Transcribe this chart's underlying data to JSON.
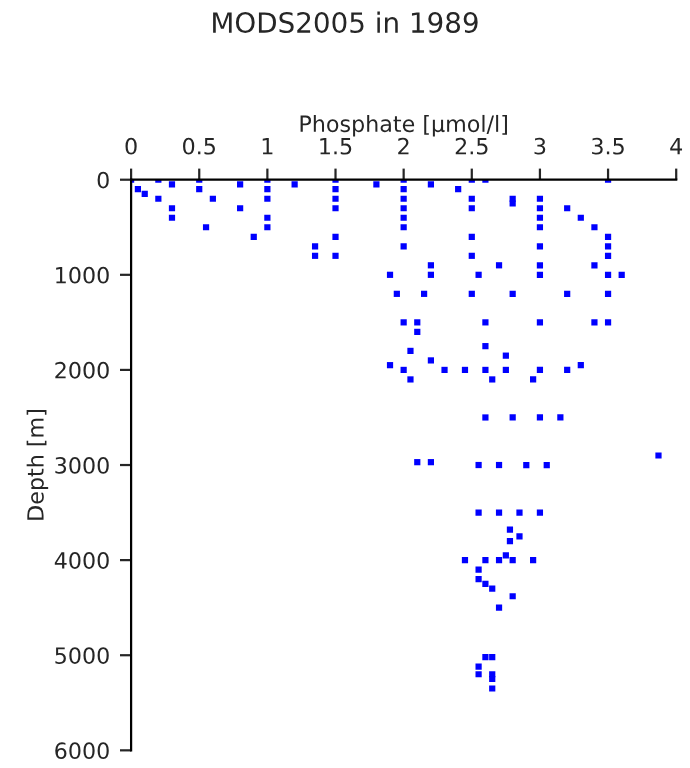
{
  "chart_data": {
    "type": "scatter",
    "title": "MODS2005 in 1989",
    "xlabel": "Phosphate [µmol/l]",
    "ylabel": "Depth [m]",
    "xlim": [
      0,
      4
    ],
    "xticks": [
      0,
      0.5,
      1,
      1.5,
      2,
      2.5,
      3,
      3.5,
      4
    ],
    "ylim": [
      6000,
      0
    ],
    "yticks": [
      0,
      1000,
      2000,
      3000,
      4000,
      5000,
      6000
    ],
    "grid": false,
    "marker": "square",
    "series": [
      {
        "color": "#0000ff",
        "x": [
          0.0,
          0.2,
          0.5,
          1.0,
          1.5,
          2.0,
          2.5,
          2.6,
          0.05,
          0.3,
          0.8,
          1.2,
          1.8,
          2.2,
          0.1,
          0.5,
          1.0,
          1.5,
          2.0,
          2.4,
          3.5,
          0.2,
          0.6,
          1.0,
          1.5,
          2.0,
          2.5,
          2.8,
          3.0,
          2.8,
          0.3,
          0.8,
          1.5,
          2.0,
          2.5,
          3.0,
          3.2,
          0.3,
          1.0,
          2.0,
          3.0,
          3.3,
          0.55,
          1.0,
          2.0,
          3.0,
          3.4,
          0.9,
          1.5,
          2.5,
          3.5,
          1.35,
          2.0,
          3.0,
          3.5,
          1.35,
          1.5,
          2.5,
          3.5,
          2.2,
          2.7,
          3.0,
          3.4,
          1.9,
          2.2,
          2.55,
          3.0,
          3.5,
          3.6,
          1.95,
          2.15,
          2.5,
          2.8,
          3.2,
          3.5,
          2.0,
          2.1,
          2.6,
          3.0,
          3.4,
          3.5,
          2.1,
          2.05,
          2.6,
          2.75,
          1.9,
          2.05,
          2.2,
          2.3,
          2.45,
          2.6,
          2.75,
          3.0,
          3.2,
          3.3,
          2.0,
          2.65,
          2.95,
          2.6,
          2.8,
          3.0,
          3.15,
          2.1,
          2.2,
          2.55,
          2.7,
          2.9,
          3.05,
          3.87,
          2.55,
          2.7,
          2.85,
          3.0,
          2.78,
          2.85,
          2.78,
          2.45,
          2.6,
          2.7,
          2.8,
          2.95,
          2.55,
          2.55,
          2.6,
          2.65,
          2.7,
          2.8,
          2.75,
          2.6,
          2.65,
          2.55,
          2.55,
          2.65,
          2.65,
          2.65
        ],
        "values": [
          0,
          0,
          0,
          0,
          0,
          0,
          0,
          0,
          100,
          50,
          50,
          50,
          50,
          50,
          150,
          100,
          100,
          100,
          100,
          100,
          0,
          200,
          200,
          200,
          200,
          200,
          200,
          200,
          200,
          250,
          300,
          300,
          300,
          300,
          300,
          300,
          300,
          400,
          400,
          400,
          400,
          400,
          500,
          500,
          500,
          500,
          500,
          600,
          600,
          600,
          600,
          700,
          700,
          700,
          700,
          800,
          800,
          800,
          800,
          900,
          900,
          900,
          900,
          1000,
          1000,
          1000,
          1000,
          1000,
          1000,
          1200,
          1200,
          1200,
          1200,
          1200,
          1200,
          1500,
          1500,
          1500,
          1500,
          1500,
          1500,
          1600,
          1800,
          1750,
          1850,
          1950,
          2100,
          1900,
          2000,
          2000,
          2000,
          2000,
          2000,
          2000,
          1950,
          2000,
          2100,
          2100,
          2500,
          2500,
          2500,
          2500,
          2970,
          2970,
          3000,
          3000,
          3000,
          3000,
          2900,
          3500,
          3500,
          3500,
          3500,
          3680,
          3750,
          3800,
          4000,
          4000,
          4000,
          4000,
          4000,
          4100,
          4200,
          4250,
          4300,
          4500,
          4380,
          3950,
          5020,
          5020,
          5120,
          5200,
          5200,
          5250,
          5350
        ]
      }
    ]
  }
}
